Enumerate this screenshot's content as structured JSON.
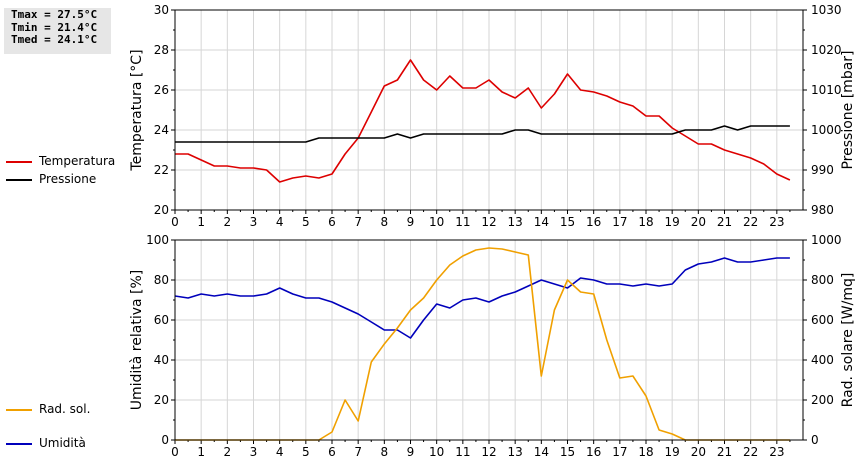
{
  "stats": {
    "tmax": "Tmax = 27.5°C",
    "tmin": "Tmin = 21.4°C",
    "tmed": "Tmed = 24.1°C"
  },
  "colors": {
    "temperature": "#dd0000",
    "pressure": "#000000",
    "humidity": "#0000bb",
    "radiation": "#f0a000",
    "grid": "#d6d6d6"
  },
  "legend_top": [
    {
      "label": "Temperatura",
      "color": "#dd0000"
    },
    {
      "label": "Pressione",
      "color": "#000000"
    }
  ],
  "legend_bottom": [
    {
      "label": "Umidità",
      "color": "#0000bb"
    },
    {
      "label": "Rad. sol.",
      "color": "#f0a000"
    }
  ],
  "chart_data": [
    {
      "type": "line",
      "xlabel": "",
      "ylabel": "Temperatura [°C]",
      "y2label": "Pressione [mbar]",
      "xlim": [
        0,
        24
      ],
      "ylim": [
        20,
        30
      ],
      "y2lim": [
        980,
        1030
      ],
      "xticks": [
        "0",
        "1",
        "2",
        "3",
        "4",
        "5",
        "6",
        "7",
        "8",
        "9",
        "10",
        "11",
        "12",
        "13",
        "14",
        "15",
        "16",
        "17",
        "18",
        "19",
        "20",
        "21",
        "22",
        "23"
      ],
      "yticks": [
        "20",
        "22",
        "24",
        "26",
        "28",
        "30"
      ],
      "y2ticks": [
        "980",
        "990",
        "1000",
        "1010",
        "1020",
        "1030"
      ],
      "grid": true,
      "legend": "left",
      "x": [
        0,
        0.5,
        1,
        1.5,
        2,
        2.5,
        3,
        3.5,
        4,
        4.5,
        5,
        5.5,
        6,
        6.5,
        7,
        7.5,
        8,
        8.5,
        9,
        9.5,
        10,
        10.5,
        11,
        11.5,
        12,
        12.5,
        13,
        13.5,
        14,
        14.5,
        15,
        15.5,
        16,
        16.5,
        17,
        17.5,
        18,
        18.5,
        19,
        19.5,
        20,
        20.5,
        21,
        21.5,
        22,
        22.5,
        23,
        23.5
      ],
      "series": [
        {
          "name": "Temperatura",
          "axis": "left",
          "color": "#dd0000",
          "values": [
            22.8,
            22.8,
            22.5,
            22.2,
            22.2,
            22.1,
            22.1,
            22.0,
            21.4,
            21.6,
            21.7,
            21.6,
            21.8,
            22.8,
            23.6,
            24.9,
            26.2,
            26.5,
            27.5,
            26.5,
            26.0,
            26.7,
            26.1,
            26.1,
            26.5,
            25.9,
            25.6,
            26.1,
            25.1,
            25.8,
            26.8,
            26.0,
            25.9,
            25.7,
            25.4,
            25.2,
            24.7,
            24.7,
            24.1,
            23.7,
            23.3,
            23.3,
            23.0,
            22.8,
            22.6,
            22.3,
            21.8,
            21.5
          ]
        },
        {
          "name": "Pressione",
          "axis": "right",
          "color": "#000000",
          "values": [
            997,
            997,
            997,
            997,
            997,
            997,
            997,
            997,
            997,
            997,
            997,
            998,
            998,
            998,
            998,
            998,
            998,
            999,
            998,
            999,
            999,
            999,
            999,
            999,
            999,
            999,
            1000,
            1000,
            999,
            999,
            999,
            999,
            999,
            999,
            999,
            999,
            999,
            999,
            999,
            1000,
            1000,
            1000,
            1001,
            1000,
            1001,
            1001,
            1001,
            1001
          ]
        }
      ]
    },
    {
      "type": "line",
      "xlabel": "",
      "ylabel": "Umidità relativa [%]",
      "y2label": "Rad. solare [W/mq]",
      "xlim": [
        0,
        24
      ],
      "ylim": [
        0,
        100
      ],
      "y2lim": [
        0,
        1000
      ],
      "xticks": [
        "0",
        "1",
        "2",
        "3",
        "4",
        "5",
        "6",
        "7",
        "8",
        "9",
        "10",
        "11",
        "12",
        "13",
        "14",
        "15",
        "16",
        "17",
        "18",
        "19",
        "20",
        "21",
        "22",
        "23"
      ],
      "yticks": [
        "0",
        "20",
        "40",
        "60",
        "80",
        "100"
      ],
      "y2ticks": [
        "0",
        "200",
        "400",
        "600",
        "800",
        "1000"
      ],
      "grid": true,
      "legend": "left",
      "x": [
        0,
        0.5,
        1,
        1.5,
        2,
        2.5,
        3,
        3.5,
        4,
        4.5,
        5,
        5.5,
        6,
        6.5,
        7,
        7.5,
        8,
        8.5,
        9,
        9.5,
        10,
        10.5,
        11,
        11.5,
        12,
        12.5,
        13,
        13.5,
        14,
        14.5,
        15,
        15.5,
        16,
        16.5,
        17,
        17.5,
        18,
        18.5,
        19,
        19.5,
        20,
        20.5,
        21,
        21.5,
        22,
        22.5,
        23,
        23.5
      ],
      "series": [
        {
          "name": "Umidità",
          "axis": "left",
          "color": "#0000bb",
          "values": [
            72,
            71,
            73,
            72,
            73,
            72,
            72,
            73,
            76,
            73,
            71,
            71,
            69,
            66,
            63,
            59,
            55,
            55,
            51,
            60,
            68,
            66,
            70,
            71,
            69,
            72,
            74,
            77,
            80,
            78,
            76,
            81,
            80,
            78,
            78,
            77,
            78,
            77,
            78,
            85,
            88,
            89,
            91,
            89,
            89,
            90,
            91,
            91
          ]
        },
        {
          "name": "Rad. sol.",
          "axis": "right",
          "color": "#f0a000",
          "values": [
            0,
            0,
            0,
            0,
            0,
            0,
            0,
            0,
            0,
            0,
            0,
            0,
            40,
            200,
            95,
            390,
            480,
            560,
            650,
            710,
            800,
            875,
            920,
            950,
            960,
            955,
            940,
            925,
            320,
            650,
            800,
            740,
            730,
            500,
            310,
            320,
            220,
            50,
            30,
            0,
            0,
            0,
            0,
            0,
            0,
            0,
            0,
            0
          ]
        }
      ]
    }
  ]
}
